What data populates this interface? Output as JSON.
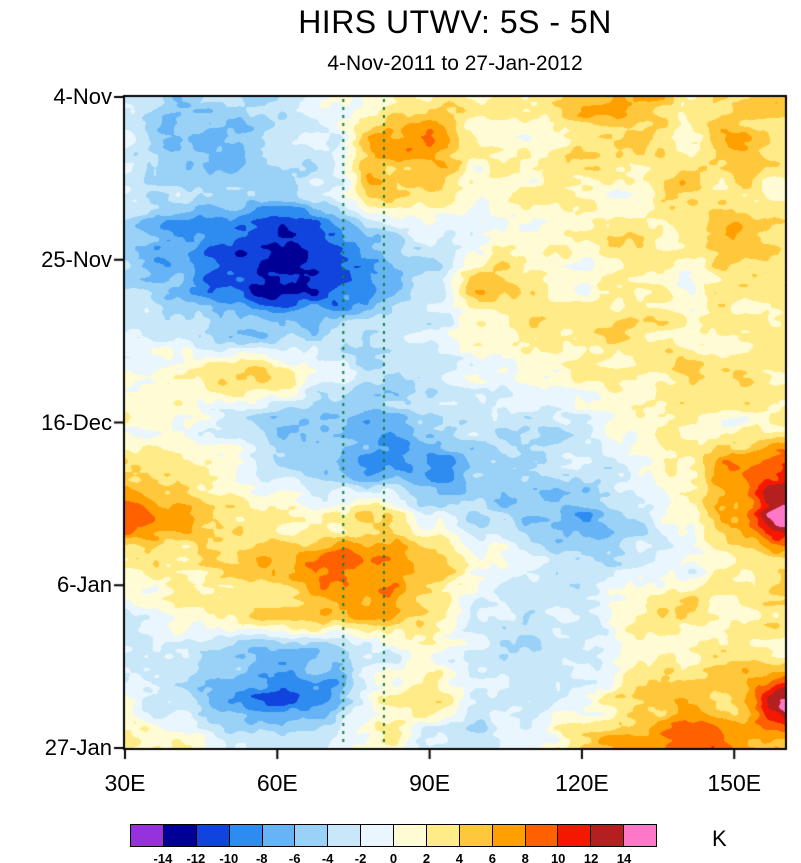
{
  "chart_data": {
    "type": "heatmap",
    "title": "HIRS UTWV: 5S - 5N",
    "subtitle": "4-Nov-2011 to 27-Jan-2012",
    "x_range": [
      30,
      160
    ],
    "x_ticks": {
      "values": [
        30,
        60,
        90,
        120,
        150
      ],
      "labels": [
        "30E",
        "60E",
        "90E",
        "120E",
        "150E"
      ]
    },
    "y_ticks": {
      "labels": [
        "4-Nov",
        "25-Nov",
        "16-Dec",
        "6-Jan",
        "27-Jan"
      ],
      "fractions": [
        0,
        0.25,
        0.5,
        0.75,
        1
      ]
    },
    "grid": {
      "lons": [
        30,
        40,
        50,
        60,
        70,
        80,
        90,
        100,
        110,
        120,
        130,
        140,
        150,
        160
      ],
      "dates": [
        "4-Nov",
        "10-Nov",
        "16-Nov",
        "22-Nov",
        "28-Nov",
        "4-Dec",
        "10-Dec",
        "16-Dec",
        "22-Dec",
        "28-Dec",
        "3-Jan",
        "9-Jan",
        "15-Jan",
        "21-Jan",
        "27-Jan"
      ],
      "values": [
        [
          -3,
          -5,
          -4,
          -4,
          0,
          1,
          3,
          2,
          3,
          6,
          7,
          3,
          4,
          5
        ],
        [
          -2,
          -6,
          -7,
          -4,
          -2,
          6,
          7,
          2,
          1,
          3,
          4,
          2,
          6,
          3
        ],
        [
          -3,
          -4,
          -5,
          -6,
          -3,
          5,
          4,
          1,
          2,
          2,
          1,
          4,
          3,
          2
        ],
        [
          -5,
          -8,
          -10,
          -12,
          -10,
          -6,
          -2,
          0,
          1,
          2,
          3,
          2,
          6,
          3
        ],
        [
          -4,
          -7,
          -11,
          -13,
          -12,
          -8,
          -4,
          5,
          2,
          1,
          2,
          1,
          3,
          4
        ],
        [
          -2,
          -3,
          -5,
          -6,
          -5,
          -3,
          -2,
          1,
          3,
          2,
          4,
          2,
          2,
          3
        ],
        [
          0,
          2,
          4,
          3,
          -2,
          -4,
          -3,
          -1,
          1,
          2,
          1,
          3,
          4,
          2
        ],
        [
          1,
          0,
          -2,
          -5,
          -6,
          -7,
          -5,
          -3,
          -4,
          -2,
          1,
          2,
          1,
          3
        ],
        [
          4,
          3,
          1,
          -3,
          -6,
          -8,
          -9,
          -5,
          -4,
          -3,
          -2,
          2,
          8,
          11
        ],
        [
          10,
          6,
          3,
          2,
          1,
          3,
          -2,
          -4,
          -6,
          -7,
          -4,
          1,
          6,
          15
        ],
        [
          3,
          2,
          4,
          5,
          8,
          7,
          5,
          1,
          -2,
          -4,
          -3,
          -1,
          2,
          4
        ],
        [
          -2,
          1,
          3,
          4,
          6,
          8,
          3,
          -2,
          -3,
          -2,
          2,
          3,
          2,
          3
        ],
        [
          -3,
          -2,
          -4,
          -6,
          -5,
          -2,
          0,
          -2,
          -4,
          -3,
          1,
          2,
          4,
          2
        ],
        [
          -1,
          -3,
          -7,
          -10,
          -8,
          2,
          3,
          -2,
          -3,
          0,
          3,
          5,
          4,
          15
        ],
        [
          2,
          1,
          -2,
          -4,
          -1,
          2,
          -3,
          -4,
          -1,
          4,
          7,
          10,
          8,
          6
        ]
      ]
    },
    "reference_lines": {
      "lons": [
        73,
        81
      ],
      "color": "#0E8040",
      "style": "dashed"
    },
    "colorbar": {
      "levels": [
        -14,
        -12,
        -10,
        -8,
        -6,
        -4,
        -2,
        0,
        2,
        4,
        6,
        8,
        10,
        12,
        14
      ],
      "colors": [
        "#9632DC",
        "#000096",
        "#1144DC",
        "#2E8CF0",
        "#66B4F5",
        "#9AD2F7",
        "#C8E8FA",
        "#EAF6FD",
        "#FFFBD5",
        "#FFEB87",
        "#FFC83C",
        "#FFA000",
        "#FF6000",
        "#F51800",
        "#B42020",
        "#FF78C8"
      ],
      "unit": "K"
    }
  }
}
